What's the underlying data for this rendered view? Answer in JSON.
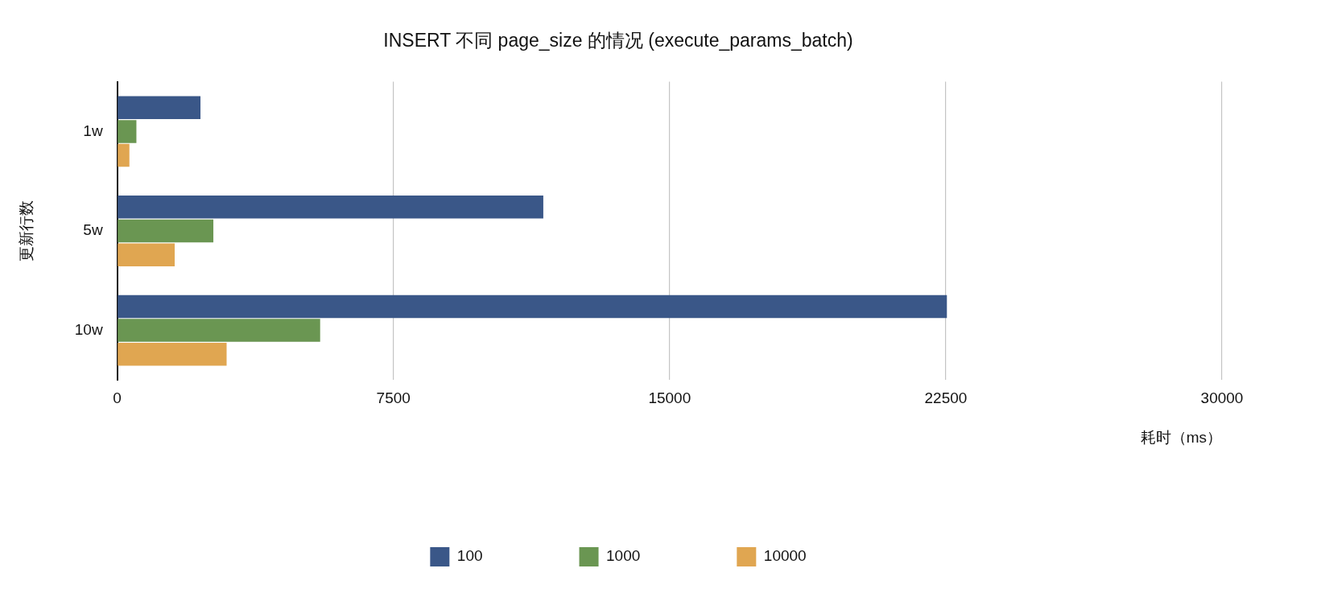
{
  "chart_data": {
    "type": "bar",
    "orientation": "horizontal",
    "title": "INSERT 不同 page_size 的情况 (execute_params_batch)",
    "xlabel": "耗时（ms）",
    "ylabel": "更新行数",
    "categories": [
      "1w",
      "5w",
      "10w"
    ],
    "series": [
      {
        "name": "100",
        "color": "#3a5788",
        "values": [
          2260,
          11570,
          22530
        ]
      },
      {
        "name": "1000",
        "color": "#6a9652",
        "values": [
          520,
          2610,
          5510
        ]
      },
      {
        "name": "10000",
        "color": "#e0a651",
        "values": [
          330,
          1560,
          2970
        ]
      }
    ],
    "xlim": [
      0,
      30000
    ],
    "xticks": [
      0,
      7500,
      15000,
      22500,
      30000
    ],
    "grid": "x",
    "legend": "bottom"
  }
}
